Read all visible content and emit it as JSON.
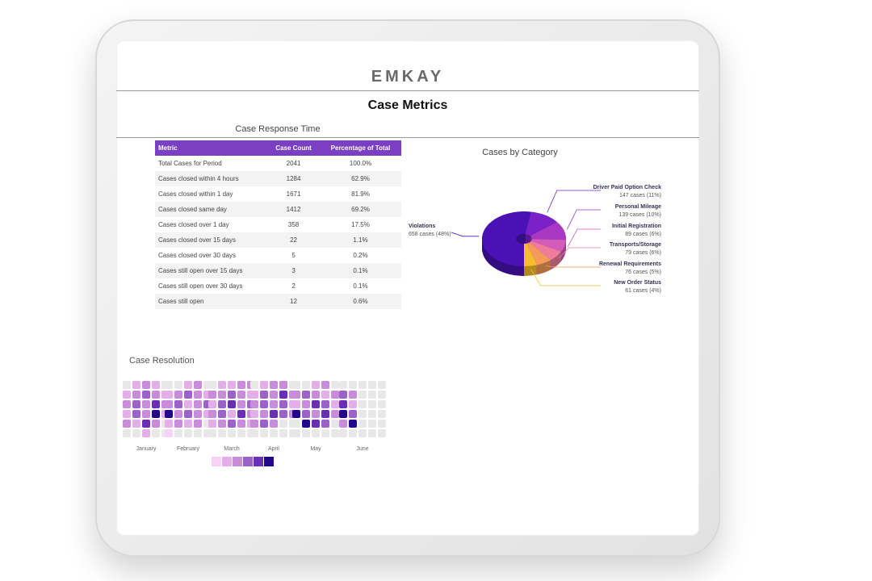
{
  "header": {
    "logo": "EMKAY",
    "title": "Case Metrics"
  },
  "table": {
    "title": "Case Response Time",
    "columns": [
      "Metric",
      "Case Count",
      "Percentage of Total"
    ],
    "rows": [
      [
        "Total Cases for Period",
        "2041",
        "100.0%"
      ],
      [
        "Cases closed within 4 hours",
        "1284",
        "62.9%"
      ],
      [
        "Cases closed within 1 day",
        "1671",
        "81.9%"
      ],
      [
        "Cases closed same day",
        "1412",
        "69.2%"
      ],
      [
        "Cases closed over 1 day",
        "358",
        "17.5%"
      ],
      [
        "Cases closed over 15 days",
        "22",
        "1.1%"
      ],
      [
        "Cases closed over 30 days",
        "5",
        "0.2%"
      ],
      [
        "Cases still open over 15 days",
        "3",
        "0.1%"
      ],
      [
        "Cases still open over 30 days",
        "2",
        "0.1%"
      ],
      [
        "Cases still open",
        "12",
        "0.6%"
      ]
    ]
  },
  "chart_data": [
    {
      "type": "pie",
      "title": "Cases by Category",
      "donut": true,
      "categories": [
        "Violations",
        "Driver Paid Option Check",
        "Personal Mileage",
        "Initial Registration",
        "Transports/Storage",
        "Renewal Requirements",
        "New Order Status"
      ],
      "values": [
        658,
        147,
        139,
        89,
        79,
        76,
        61
      ],
      "value_labels": [
        "658 cases (48%)",
        "147 cases (11%)",
        "139 cases (10%)",
        "89 cases (6%)",
        "79 cases (6%)",
        "76 cases (5%)",
        "61 cases (4%)"
      ],
      "colors": [
        "#4a12b4",
        "#7a22c8",
        "#a838c4",
        "#d35cb8",
        "#ee7c9a",
        "#f59a58",
        "#f7bd2c"
      ]
    },
    {
      "type": "heatmap",
      "title": "Case Resolution",
      "categories": [
        "January",
        "February",
        "March",
        "April",
        "May",
        "June"
      ],
      "scale_colors": [
        "#f6d2f6",
        "#e4aee9",
        "#c98cdb",
        "#9d61ca",
        "#6a2fb2",
        "#24088c"
      ],
      "values": [
        [
          null,
          1,
          2,
          1,
          null,
          1,
          2,
          3,
          2,
          1,
          2,
          3,
          2,
          4,
          2,
          1,
          3,
          2,
          5,
          1,
          2,
          1,
          4,
          2,
          null,
          null,
          null,
          1,
          null,
          null
        ],
        [
          null,
          null,
          1,
          2,
          null,
          1,
          2,
          3,
          2,
          1,
          2,
          3,
          1,
          2,
          3,
          5,
          2,
          3,
          2,
          1,
          1,
          2,
          1,
          2,
          null,
          0,
          null,
          null,
          null,
          null
        ],
        [
          null,
          1,
          1,
          2,
          2,
          2,
          2,
          3,
          2,
          1,
          1,
          3,
          4,
          2,
          3,
          2,
          3,
          1,
          4,
          2,
          1,
          2,
          3,
          2,
          1,
          null,
          null,
          null,
          null,
          null
        ],
        [
          null,
          1,
          2,
          2,
          null,
          1,
          3,
          2,
          4,
          2,
          2,
          3,
          2,
          3,
          1,
          1,
          2,
          4,
          3,
          2,
          2,
          3,
          2,
          null,
          null,
          null,
          null,
          null,
          null,
          null
        ],
        [
          null,
          null,
          1,
          2,
          null,
          2,
          3,
          2,
          1,
          2,
          1,
          2,
          4,
          3,
          1,
          5,
          3,
          2,
          4,
          2,
          null,
          5,
          4,
          3,
          null,
          null,
          null,
          null,
          null,
          null
        ],
        [
          null,
          null,
          null,
          null,
          null,
          3,
          2,
          null,
          null,
          null,
          4,
          1,
          null,
          null,
          null,
          5,
          3,
          null,
          null,
          null,
          2,
          5,
          null,
          null,
          null,
          null,
          null,
          null,
          null,
          null
        ]
      ]
    }
  ]
}
